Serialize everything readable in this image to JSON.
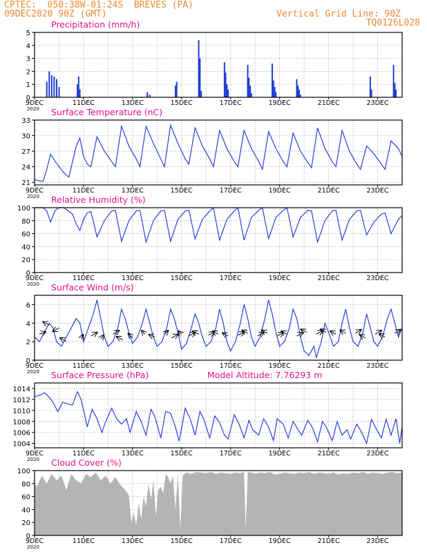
{
  "header": {
    "station": "CPTEC:  050:38W-01:24S  BREVES (PA)",
    "run": "09DEC2020 90Z (GMT)",
    "grid_line": "Vertical Grid Line: 90Z",
    "code": "TQ0126L028",
    "model_altitude": "Model Altitude: 7.76293 m"
  },
  "colors": {
    "title": "#e8108a",
    "header": "#ee8833",
    "line": "#2840e0",
    "bar": "#1f3fd6",
    "cloud": "#b4b4b4",
    "arrow": "#000000",
    "grid": "#888888"
  },
  "x_axis": {
    "start_day": 9,
    "end_day": 24,
    "tick_labels": [
      "9DEC",
      "11DEC",
      "13DEC",
      "15DEC",
      "17DEC",
      "19DEC",
      "21DEC",
      "23DEC"
    ],
    "year_label": "2020"
  },
  "chart_data": [
    {
      "id": "precip",
      "type": "bar",
      "title": "Precipitation (mm/h)",
      "ylim": [
        0,
        5
      ],
      "yticks": [
        "0",
        "1",
        "2",
        "3",
        "4",
        "5"
      ],
      "x": [
        9.5,
        9.6,
        9.7,
        9.8,
        9.9,
        10.0,
        10.75,
        10.8,
        10.85,
        13.6,
        13.7,
        14.75,
        14.8,
        15.7,
        15.75,
        15.8,
        16.75,
        16.8,
        16.85,
        16.9,
        17.7,
        17.75,
        17.8,
        17.85,
        18.7,
        18.75,
        18.8,
        18.85,
        19.7,
        19.75,
        19.8,
        19.85,
        22.7,
        22.75,
        23.65,
        23.7,
        23.75
      ],
      "values": [
        1.2,
        2.0,
        1.7,
        1.6,
        1.4,
        0.8,
        1.0,
        1.6,
        0.6,
        0.4,
        0.2,
        0.9,
        1.2,
        4.4,
        3.0,
        0.5,
        2.7,
        1.9,
        1.0,
        0.6,
        2.5,
        1.5,
        0.9,
        0.3,
        2.6,
        1.3,
        0.8,
        0.4,
        1.4,
        0.9,
        0.6,
        0.2,
        1.6,
        0.6,
        2.5,
        1.1,
        0.6
      ]
    },
    {
      "id": "temp",
      "type": "line",
      "title": "Surface Temperature (nC)",
      "ylim": [
        20.5,
        33
      ],
      "yticks": [
        "21",
        "24",
        "27",
        "30",
        "33"
      ],
      "x": [
        9.0,
        9.2,
        9.35,
        9.5,
        9.65,
        9.85,
        10.0,
        10.2,
        10.4,
        10.55,
        10.7,
        10.85,
        11.0,
        11.15,
        11.3,
        11.55,
        11.85,
        12.15,
        12.3,
        12.55,
        12.85,
        13.15,
        13.3,
        13.55,
        13.85,
        14.15,
        14.3,
        14.55,
        14.85,
        15.15,
        15.3,
        15.55,
        15.85,
        16.15,
        16.3,
        16.55,
        16.85,
        17.15,
        17.3,
        17.55,
        17.85,
        18.15,
        18.3,
        18.55,
        18.85,
        19.15,
        19.3,
        19.55,
        19.85,
        20.15,
        20.3,
        20.55,
        20.85,
        21.15,
        21.3,
        21.55,
        21.85,
        22.15,
        22.3,
        22.55,
        22.85,
        23.15,
        23.3,
        23.55,
        23.85,
        24.0
      ],
      "y": [
        21.5,
        21.3,
        21.2,
        23.5,
        26.4,
        25.0,
        24.0,
        22.8,
        22.0,
        25.0,
        28.0,
        29.5,
        26.0,
        24.5,
        24.0,
        29.8,
        27.0,
        25.0,
        24.0,
        31.8,
        28.0,
        25.5,
        24.0,
        31.8,
        28.5,
        25.5,
        24.0,
        32.0,
        28.5,
        25.5,
        24.5,
        31.5,
        28.0,
        25.5,
        24.0,
        31.0,
        27.5,
        25.0,
        24.0,
        31.0,
        27.5,
        25.0,
        23.5,
        30.8,
        27.5,
        25.0,
        24.0,
        30.5,
        27.0,
        24.8,
        23.8,
        31.5,
        27.5,
        25.0,
        24.0,
        31.0,
        27.0,
        24.5,
        23.5,
        28.0,
        26.5,
        24.5,
        23.5,
        29.0,
        27.5,
        26.0
      ]
    },
    {
      "id": "rh",
      "type": "line",
      "title": "Relative Humidity (%)",
      "ylim": [
        0,
        100
      ],
      "yticks": [
        "0",
        "20",
        "40",
        "60",
        "80",
        "100"
      ],
      "x": [
        9.0,
        9.35,
        9.5,
        9.65,
        9.85,
        10.0,
        10.2,
        10.55,
        10.7,
        10.85,
        11.0,
        11.15,
        11.3,
        11.55,
        11.85,
        12.15,
        12.3,
        12.55,
        12.85,
        13.15,
        13.3,
        13.55,
        13.85,
        14.15,
        14.3,
        14.55,
        14.85,
        15.15,
        15.3,
        15.55,
        15.85,
        16.15,
        16.3,
        16.55,
        16.85,
        17.15,
        17.3,
        17.55,
        17.85,
        18.15,
        18.3,
        18.55,
        18.85,
        19.15,
        19.3,
        19.55,
        19.85,
        20.15,
        20.3,
        20.55,
        20.85,
        21.15,
        21.3,
        21.55,
        21.85,
        22.15,
        22.3,
        22.55,
        22.85,
        23.15,
        23.3,
        23.55,
        23.85,
        24.0
      ],
      "y": [
        100,
        100,
        95,
        78,
        96,
        100,
        100,
        90,
        75,
        65,
        82,
        92,
        94,
        55,
        80,
        95,
        96,
        48,
        80,
        95,
        96,
        47,
        80,
        95,
        96,
        48,
        82,
        95,
        96,
        52,
        82,
        95,
        100,
        50,
        82,
        95,
        100,
        50,
        85,
        96,
        100,
        52,
        85,
        96,
        100,
        55,
        85,
        96,
        95,
        47,
        80,
        95,
        96,
        50,
        82,
        95,
        96,
        58,
        78,
        90,
        92,
        60,
        82,
        88
      ]
    },
    {
      "id": "wind",
      "type": "line",
      "title": "Surface Wind (m/s)",
      "ylim": [
        0,
        7
      ],
      "yticks": [
        "0",
        "2",
        "4",
        "6"
      ],
      "x": [
        9.0,
        9.2,
        9.4,
        9.6,
        9.75,
        9.9,
        10.1,
        10.3,
        10.5,
        10.7,
        10.85,
        11.0,
        11.2,
        11.4,
        11.55,
        11.7,
        11.85,
        12.0,
        12.2,
        12.4,
        12.55,
        12.7,
        12.85,
        13.0,
        13.2,
        13.4,
        13.55,
        13.7,
        13.85,
        14.0,
        14.2,
        14.4,
        14.55,
        14.7,
        14.85,
        15.0,
        15.2,
        15.4,
        15.55,
        15.7,
        15.85,
        16.0,
        16.2,
        16.4,
        16.55,
        16.7,
        16.85,
        17.0,
        17.2,
        17.4,
        17.55,
        17.7,
        17.85,
        18.0,
        18.2,
        18.4,
        18.55,
        18.7,
        18.85,
        19.0,
        19.2,
        19.4,
        19.55,
        19.7,
        19.85,
        20.0,
        20.2,
        20.4,
        20.5,
        20.7,
        20.85,
        21.0,
        21.2,
        21.4,
        21.55,
        21.7,
        21.85,
        22.0,
        22.2,
        22.4,
        22.55,
        22.7,
        22.85,
        23.0,
        23.2,
        23.4,
        23.55,
        23.7,
        23.85,
        24.0
      ],
      "y": [
        2.5,
        2.0,
        3.0,
        4.0,
        3.5,
        2.0,
        1.5,
        2.5,
        3.5,
        4.5,
        4.0,
        2.0,
        3.5,
        5.0,
        6.5,
        4.5,
        2.5,
        1.5,
        2.0,
        3.5,
        5.5,
        4.5,
        3.0,
        1.8,
        2.5,
        4.0,
        5.5,
        4.0,
        2.5,
        1.5,
        2.0,
        3.5,
        5.5,
        4.5,
        3.0,
        1.2,
        1.8,
        3.5,
        5.0,
        4.0,
        2.5,
        1.5,
        2.0,
        3.5,
        5.5,
        4.0,
        2.0,
        1.0,
        2.0,
        4.0,
        6.0,
        4.5,
        2.5,
        1.5,
        2.5,
        4.5,
        6.5,
        5.0,
        3.0,
        1.5,
        2.0,
        3.5,
        5.5,
        4.5,
        2.5,
        1.0,
        0.5,
        1.5,
        0.3,
        2.0,
        4.0,
        3.0,
        1.5,
        2.0,
        4.0,
        5.5,
        3.5,
        2.0,
        1.5,
        3.0,
        5.0,
        3.5,
        2.0,
        1.5,
        2.5,
        4.5,
        5.5,
        4.0,
        2.5,
        3.5
      ],
      "arrow_x": [
        9.2,
        9.6,
        10.0,
        10.3,
        10.9,
        11.3,
        11.7,
        12.2,
        12.6,
        13.0,
        13.5,
        13.9,
        14.3,
        14.6,
        15.0,
        15.3,
        15.7,
        16.1,
        16.5,
        16.9,
        17.3,
        17.7,
        18.1,
        18.5,
        18.9,
        19.3,
        19.7,
        20.1,
        20.5,
        20.9,
        21.3,
        21.7,
        22.1,
        22.5,
        22.9,
        23.3,
        23.7
      ],
      "arrow_dx": [
        1.0,
        -1.0,
        -1.0,
        -1.0,
        0.3,
        1.0,
        0.5,
        1.0,
        -1.0,
        -0.7,
        -0.5,
        -0.9,
        0.6,
        1.0,
        -0.5,
        1.0,
        -1.0,
        0.9,
        -0.9,
        -0.9,
        1.0,
        -0.9,
        1.0,
        -0.9,
        1.0,
        -0.9,
        1.0,
        -0.9,
        1.0,
        -0.9,
        -0.9,
        -0.9,
        0.9,
        -0.9,
        1.0,
        -0.9,
        0.9
      ],
      "arrow_dy": [
        0.4,
        0.5,
        -0.6,
        0.6,
        0.7,
        0.6,
        0.6,
        0.6,
        0.5,
        0.7,
        0.6,
        0.4,
        0.6,
        0.6,
        0.5,
        0.6,
        0.5,
        0.5,
        0.5,
        0.5,
        0.5,
        0.5,
        0.6,
        0.5,
        0.6,
        0.5,
        0.6,
        0.5,
        0.6,
        0.5,
        0.5,
        0.5,
        0.6,
        0.5,
        0.6,
        0.5,
        0.6
      ],
      "arrow_y": [
        2.8,
        3.8,
        3.5,
        2.0,
        2.3,
        2.6,
        2.3,
        2.8,
        2.2,
        2.4,
        2.8,
        2.5,
        2.8,
        2.4,
        2.8,
        2.6,
        2.8,
        2.7,
        2.8,
        2.6,
        2.7,
        2.9,
        2.6,
        2.9,
        2.6,
        2.8,
        2.6,
        3.0,
        2.8,
        3.0,
        2.8,
        2.9,
        2.9,
        2.4,
        2.8,
        2.5,
        2.9
      ]
    },
    {
      "id": "pressure",
      "type": "line",
      "title": "Surface Pressure (hPa)",
      "ylim": [
        1003.2,
        1015
      ],
      "yticks": [
        "1004",
        "1006",
        "1008",
        "1010",
        "1012",
        "1014"
      ],
      "x": [
        9.0,
        9.25,
        9.4,
        9.6,
        9.75,
        9.95,
        10.15,
        10.35,
        10.55,
        10.75,
        10.9,
        11.15,
        11.35,
        11.55,
        11.75,
        11.9,
        12.15,
        12.35,
        12.55,
        12.75,
        12.9,
        13.15,
        13.35,
        13.55,
        13.75,
        13.9,
        14.15,
        14.35,
        14.55,
        14.75,
        14.9,
        15.15,
        15.35,
        15.55,
        15.75,
        15.9,
        16.15,
        16.35,
        16.55,
        16.75,
        16.9,
        17.15,
        17.35,
        17.55,
        17.75,
        17.9,
        18.15,
        18.35,
        18.55,
        18.75,
        18.9,
        19.15,
        19.35,
        19.55,
        19.75,
        19.9,
        20.15,
        20.35,
        20.55,
        20.75,
        20.9,
        21.15,
        21.35,
        21.55,
        21.75,
        21.9,
        22.15,
        22.35,
        22.55,
        22.75,
        22.9,
        23.15,
        23.35,
        23.55,
        23.75,
        23.9,
        24.0
      ],
      "y": [
        1012.5,
        1012.8,
        1013.2,
        1012.4,
        1011.5,
        1009.8,
        1011.5,
        1011.2,
        1011.0,
        1013.4,
        1012.0,
        1007.0,
        1010.2,
        1008.5,
        1006.0,
        1008.0,
        1010.4,
        1008.5,
        1007.5,
        1008.5,
        1006.0,
        1009.8,
        1008.0,
        1005.5,
        1010.2,
        1009.0,
        1005.0,
        1009.8,
        1009.5,
        1007.0,
        1004.4,
        1010.4,
        1008.5,
        1005.5,
        1009.8,
        1008.5,
        1005.0,
        1009.0,
        1007.8,
        1005.5,
        1004.8,
        1009.2,
        1007.5,
        1005.0,
        1008.2,
        1006.5,
        1005.5,
        1008.5,
        1007.0,
        1004.5,
        1008.5,
        1007.5,
        1005.0,
        1008.0,
        1006.5,
        1005.5,
        1008.2,
        1006.8,
        1004.3,
        1008.0,
        1007.0,
        1004.5,
        1008.0,
        1005.5,
        1006.5,
        1004.8,
        1007.5,
        1006.0,
        1004.0,
        1008.4,
        1007.0,
        1005.0,
        1008.4,
        1005.5,
        1008.5,
        1004.0,
        1007.0
      ]
    },
    {
      "id": "cloud",
      "type": "area",
      "title": "Cloud Cover (%)",
      "ylim": [
        0,
        100
      ],
      "yticks": [
        "0",
        "20",
        "40",
        "60",
        "80",
        "100"
      ],
      "x": [
        9.0,
        9.1,
        9.3,
        9.5,
        9.7,
        9.9,
        10.1,
        10.3,
        10.5,
        10.7,
        10.9,
        11.1,
        11.3,
        11.5,
        11.7,
        11.9,
        12.1,
        12.3,
        12.5,
        12.7,
        12.85,
        12.95,
        13.05,
        13.15,
        13.25,
        13.35,
        13.45,
        13.55,
        13.65,
        13.75,
        13.85,
        13.95,
        14.05,
        14.15,
        14.25,
        14.35,
        14.45,
        14.55,
        14.65,
        14.75,
        14.85,
        14.95,
        15.05,
        15.2,
        15.4,
        15.6,
        15.8,
        16.0,
        16.2,
        16.4,
        16.6,
        16.8,
        17.0,
        17.2,
        17.4,
        17.55,
        17.62,
        17.7,
        17.85,
        18.0,
        18.2,
        18.4,
        18.6,
        18.8,
        19.0,
        19.2,
        19.4,
        19.6,
        19.8,
        20.0,
        20.2,
        20.4,
        20.6,
        20.8,
        21.0,
        21.2,
        21.4,
        21.6,
        21.8,
        22.0,
        22.2,
        22.4,
        22.6,
        22.8,
        23.0,
        23.2,
        23.4,
        23.6,
        23.8,
        24.0
      ],
      "y": [
        80,
        75,
        92,
        80,
        95,
        85,
        92,
        70,
        95,
        85,
        80,
        95,
        90,
        97,
        85,
        92,
        80,
        90,
        78,
        70,
        62,
        20,
        35,
        15,
        50,
        25,
        60,
        45,
        80,
        55,
        85,
        30,
        70,
        75,
        65,
        95,
        90,
        80,
        92,
        40,
        95,
        10,
        93,
        97,
        95,
        98,
        97,
        96,
        98,
        95,
        97,
        96,
        95,
        97,
        96,
        98,
        10,
        98,
        97,
        95,
        97,
        96,
        98,
        94,
        95,
        97,
        96,
        95,
        97,
        96,
        98,
        95,
        97,
        96,
        95,
        97,
        94,
        96,
        95,
        97,
        96,
        98,
        95,
        97,
        96,
        95,
        97,
        98,
        96,
        97
      ]
    }
  ]
}
